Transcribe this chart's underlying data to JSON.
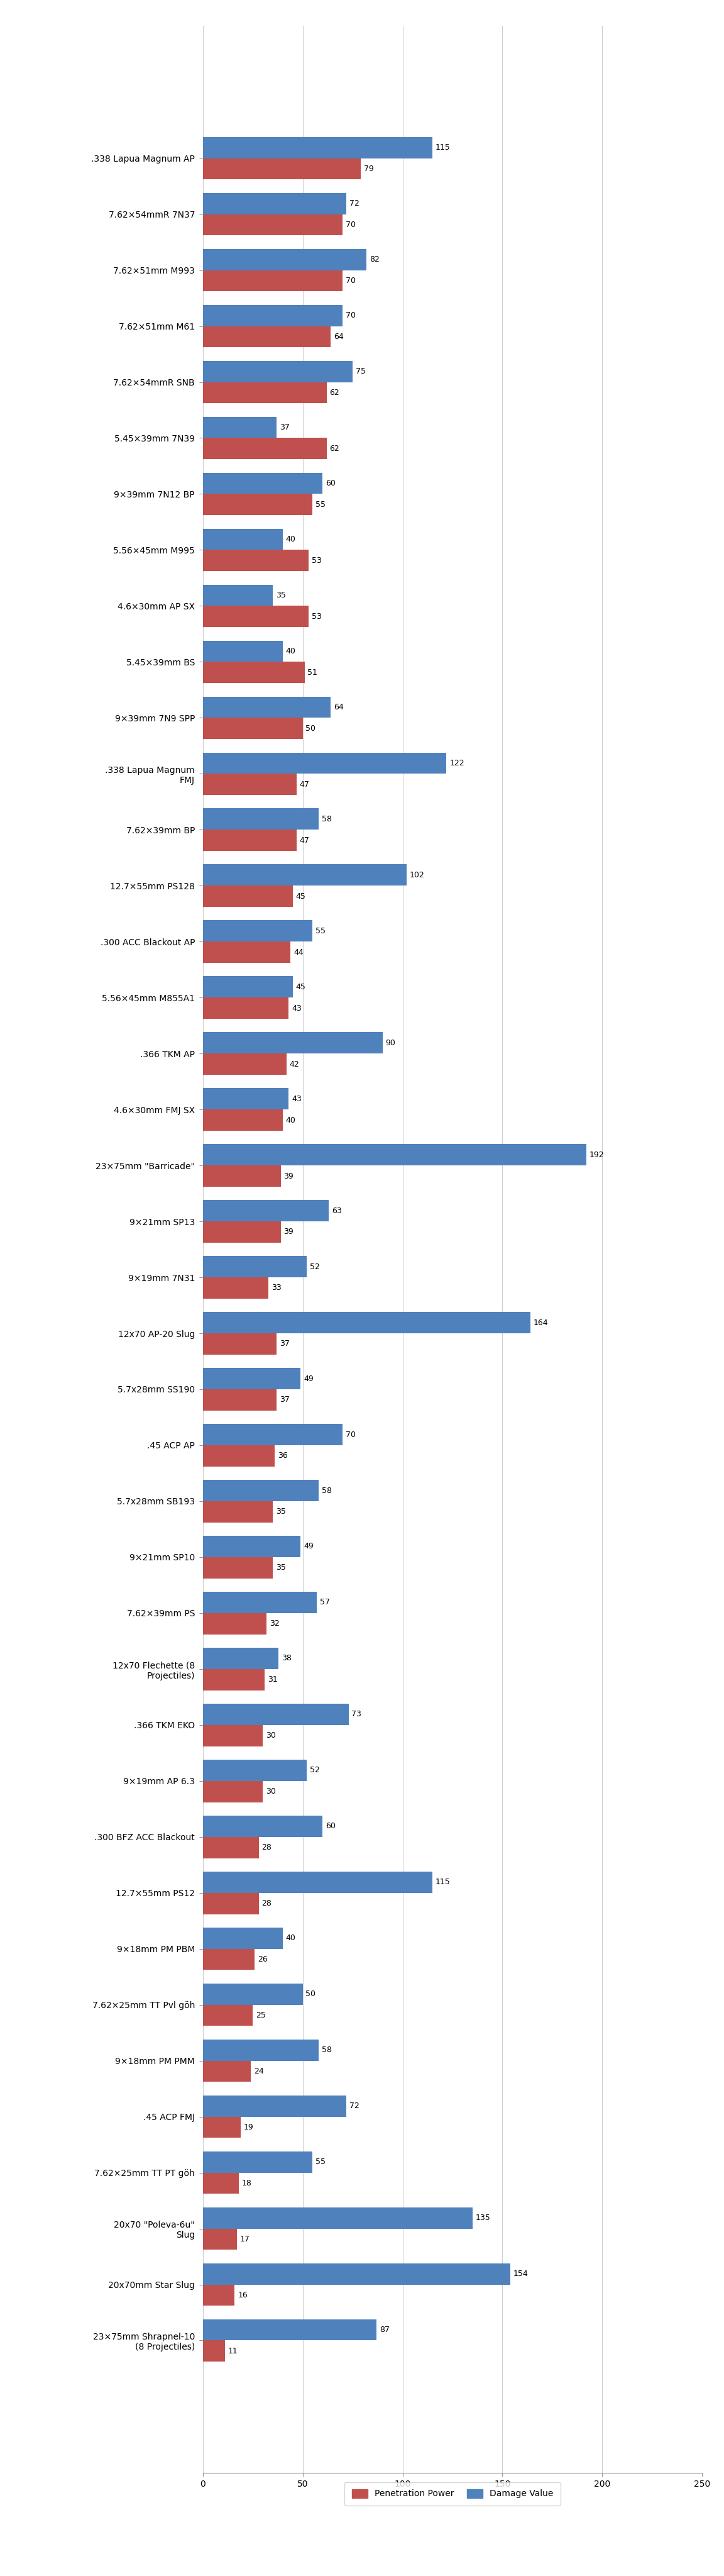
{
  "categories": [
    ".338 Lapua Magnum AP",
    "7.62×54mmR 7N37",
    "7.62×51mm M993",
    "7.62×51mm M61",
    "7.62×54mmR SNB",
    "5.45×39mm 7N39",
    "9×39mm 7N12 BP",
    "5.56×45mm M995",
    "4.6×30mm AP SX",
    "5.45×39mm BS",
    "9×39mm 7N9 SPP",
    ".338 Lapua Magnum\nFMJ",
    "7.62×39mm BP",
    "12.7×55mm PS128",
    ".300 ACC Blackout AP",
    "5.56×45mm M855A1",
    ".366 TKM AP",
    "4.6×30mm FMJ SX",
    "23×75mm \"Barricade\"",
    "9×21mm SP13",
    "9×19mm 7N31",
    "12x70 AP-20 Slug",
    "5.7x28mm SS190",
    ".45 ACP AP",
    "5.7x28mm SB193",
    "9×21mm SP10",
    "7.62×39mm PS",
    "12x70 Flechette (8\nProjectiles)",
    ".366 TKM EKO",
    "9×19mm AP 6.3",
    ".300 BFZ ACC Blackout",
    "12.7×55mm PS12",
    "9×18mm PM PBM",
    "7.62×25mm TT Pvl göh",
    "9×18mm PM PMM",
    ".45 ACP FMJ",
    "7.62×25mm TT PT göh",
    "20x70 \"Poleva-6u\"\nSlug",
    "20x70mm Star Slug",
    "23×75mm Shrapnel-10\n(8 Projectiles)"
  ],
  "penetration": [
    79,
    70,
    70,
    64,
    62,
    62,
    55,
    53,
    53,
    51,
    50,
    47,
    47,
    45,
    44,
    43,
    42,
    40,
    39,
    39,
    33,
    37,
    37,
    36,
    35,
    35,
    32,
    31,
    30,
    30,
    28,
    28,
    26,
    25,
    24,
    19,
    18,
    17,
    16,
    11
  ],
  "damage": [
    115,
    72,
    82,
    70,
    75,
    37,
    60,
    40,
    35,
    40,
    64,
    122,
    58,
    102,
    55,
    45,
    90,
    43,
    192,
    63,
    52,
    164,
    49,
    70,
    58,
    49,
    57,
    38,
    73,
    52,
    60,
    115,
    40,
    50,
    58,
    72,
    55,
    135,
    154,
    87
  ],
  "pen_color": "#C0504D",
  "dmg_color": "#4F81BD",
  "bar_height": 0.38,
  "xlim": [
    0,
    250
  ],
  "xticks": [
    0,
    50,
    100,
    150,
    200,
    250
  ],
  "background_color": "#FFFFFF",
  "legend_pen": "Penetration Power",
  "legend_dmg": "Damage Value"
}
